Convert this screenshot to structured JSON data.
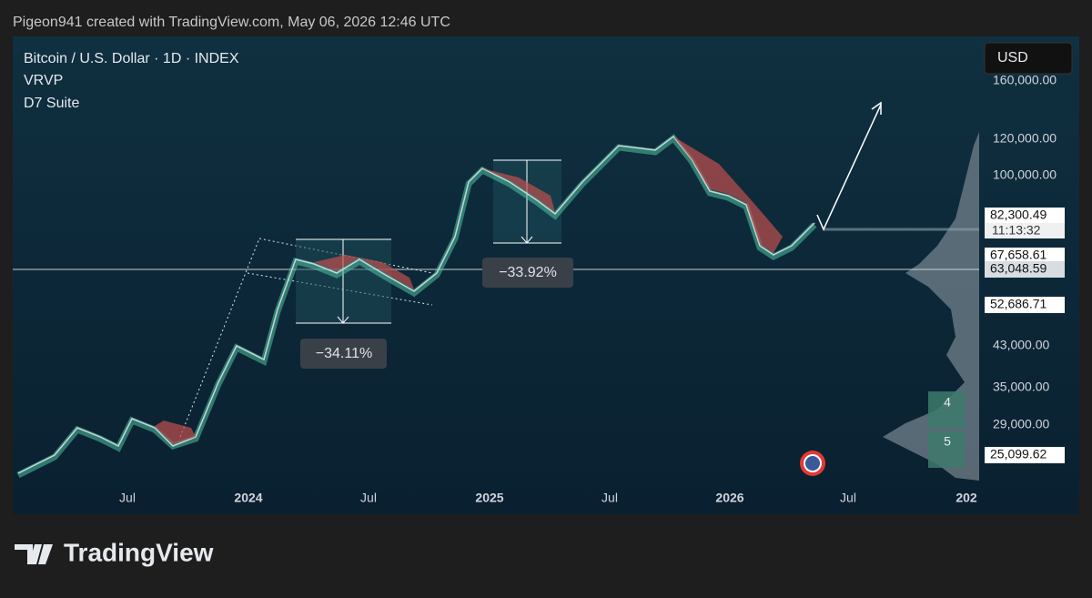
{
  "header": {
    "text": "Pigeon941 created with TradingView.com, May 06, 2026 12:46 UTC"
  },
  "chart": {
    "legend": [
      "Bitcoin / U.S. Dollar · 1D · INDEX",
      "VRVP",
      "D7 Suite"
    ],
    "currency": "USD",
    "price_axis": [
      "160,000.00",
      "120,000.00",
      "100,000.00",
      "43,000.00",
      "35,000.00",
      "29,000.00"
    ],
    "price_labels": [
      "82,300.49",
      "67,658.61",
      "63,048.59",
      "52,686.71",
      "25,099.62"
    ],
    "countdown": "11:13:32",
    "time_axis": [
      "Jul",
      "2024",
      "Jul",
      "2025",
      "Jul",
      "2026",
      "Jul",
      "202"
    ],
    "annotations": [
      "−34.11%",
      "−33.92%"
    ],
    "markers": [
      "4",
      "5"
    ]
  },
  "footer": {
    "brand": "TradingView"
  }
}
